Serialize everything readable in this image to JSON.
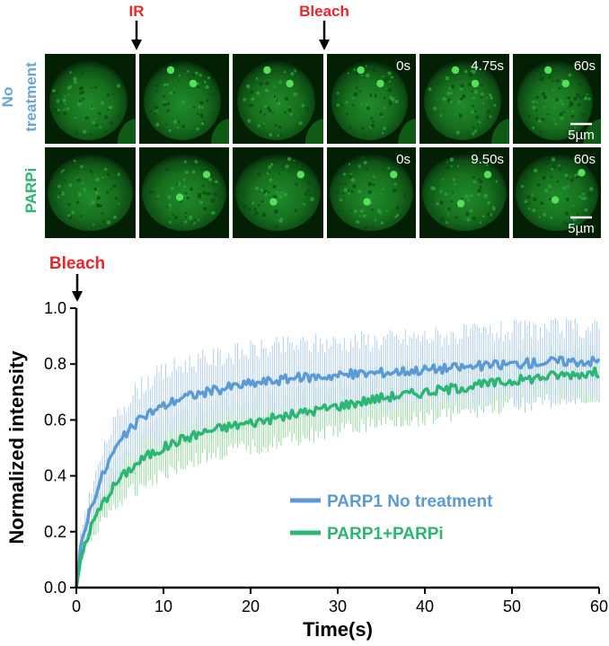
{
  "figure": {
    "ir_label": "IR",
    "bleach_top_label": "Bleach",
    "bleach_chart_label": "Bleach",
    "row1_label_line1": "No",
    "row1_label_line2": "treatment",
    "row2_label": "PARPi",
    "row1_times": [
      "0s",
      "4.75s",
      "60s"
    ],
    "row2_times": [
      "0s",
      "9.50s",
      "60s"
    ],
    "scale_bar_label": "5µm",
    "colors": {
      "red": "#e8262b",
      "blue_label": "#6aa5d8",
      "green_label": "#2bb673",
      "series_blue": "#5b9bd5",
      "series_green": "#2bb673",
      "err_blue": "#a9c9ec",
      "err_green": "#8fd69b",
      "cell_bg": "#042004"
    }
  },
  "chart_data": {
    "type": "line",
    "title": "",
    "xlabel": "Time(s)",
    "ylabel": "Normalized intensity",
    "xlim": [
      0,
      60
    ],
    "ylim": [
      0,
      1.0
    ],
    "xticks": [
      0,
      10,
      20,
      30,
      40,
      50,
      60
    ],
    "yticks": [
      0.0,
      0.2,
      0.4,
      0.6,
      0.8,
      1.0
    ],
    "ytick_labels": [
      "0.0",
      "0.2",
      "0.4",
      "0.6",
      "0.8",
      "1.0"
    ],
    "series": [
      {
        "name": "PARP1 No treatment",
        "x": [
          0,
          0.5,
          1,
          2,
          3,
          4,
          5,
          6,
          8,
          10,
          12,
          15,
          18,
          20,
          25,
          30,
          35,
          40,
          45,
          50,
          55,
          60
        ],
        "values": [
          0.0,
          0.15,
          0.22,
          0.32,
          0.4,
          0.47,
          0.52,
          0.56,
          0.62,
          0.65,
          0.68,
          0.7,
          0.72,
          0.73,
          0.75,
          0.76,
          0.77,
          0.78,
          0.79,
          0.8,
          0.81,
          0.81
        ],
        "error": 0.13
      },
      {
        "name": "PARP1+PARPi",
        "x": [
          0,
          0.5,
          1,
          2,
          3,
          4,
          5,
          6,
          8,
          10,
          12,
          15,
          18,
          20,
          25,
          30,
          35,
          40,
          45,
          50,
          55,
          60
        ],
        "values": [
          0.0,
          0.1,
          0.16,
          0.24,
          0.3,
          0.35,
          0.39,
          0.42,
          0.47,
          0.5,
          0.53,
          0.56,
          0.58,
          0.59,
          0.62,
          0.65,
          0.68,
          0.7,
          0.72,
          0.74,
          0.76,
          0.77
        ],
        "error": 0.1
      }
    ]
  }
}
